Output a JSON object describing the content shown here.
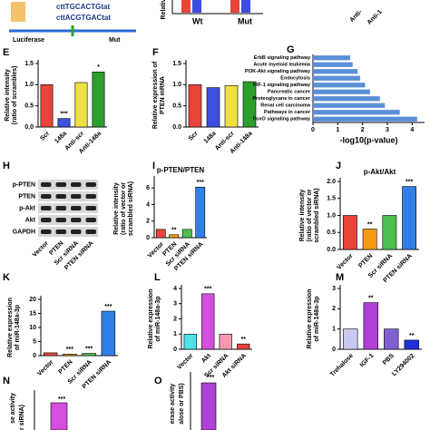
{
  "chart_data": [
    {
      "type": "bar",
      "panel": "E",
      "ylabel": [
        "Relative intensity",
        "(ratio of scrambles)"
      ],
      "categories": [
        "Scr",
        "148a",
        "Anti-scr",
        "Anti-148a"
      ],
      "values": [
        1.0,
        0.2,
        1.05,
        1.3
      ],
      "colors": [
        "#e8443a",
        "#3b4fe0",
        "#f0e040",
        "#2ca02c"
      ],
      "annotations": [
        null,
        "***",
        null,
        "*"
      ],
      "ylim": [
        0,
        1.5
      ],
      "yticks": [
        {
          "value": 0,
          "label": "0.0"
        },
        0.5,
        {
          "value": 1,
          "label": "1.0"
        },
        1.5
      ]
    },
    {
      "type": "bar",
      "panel": "F",
      "ylabel": [
        "Relative expression of",
        "PTEN mRNA"
      ],
      "categories": [
        "Scr",
        "148a",
        "Anti-scr",
        "Anti-148a"
      ],
      "values": [
        1.0,
        0.93,
        0.98,
        1.07
      ],
      "colors": [
        "#e8443a",
        "#3b4fe0",
        "#f0e040",
        "#2ca02c"
      ],
      "ylim": [
        0,
        1.5
      ],
      "yticks": [
        {
          "value": 0,
          "label": "0.0"
        },
        0.5,
        {
          "value": 1,
          "label": "1.0"
        },
        1.5
      ]
    },
    {
      "type": "barh",
      "panel": "G",
      "xlabel": "-log10(p-value)",
      "color": "#5b8fd6",
      "categories": [
        "ErbB signaling pathway",
        "Acute myeloid leukemia",
        "PI3K-Akt signaling pathway",
        "Endocytosis",
        "HIF-1 signaling pathway",
        "Pancreatic cancer",
        "Proteoglycans in cancer",
        "Renal cell carcinoma",
        "Pathways in cancer",
        "FoxO signaling pathway"
      ],
      "values": [
        1.5,
        1.6,
        1.8,
        1.9,
        2.1,
        2.3,
        2.7,
        2.9,
        3.5,
        4.2
      ],
      "xlim": [
        0,
        4.5
      ],
      "xticks": [
        0,
        1,
        2,
        3,
        4
      ]
    },
    {
      "type": "bar",
      "panel": "I",
      "title": "p-PTEN/PTEN",
      "ylabel": [
        "Relative intensity",
        "(ratio of vector or",
        "scrambled siRNA)"
      ],
      "categories": [
        "Vector",
        "PTEN",
        "Scr siRNA",
        "PTEN siRNA"
      ],
      "values": [
        1.0,
        0.35,
        1.0,
        6.1
      ],
      "colors": [
        "#e8443a",
        "#f39c12",
        "#4fc04f",
        "#2f7fe6"
      ],
      "annotations": [
        null,
        "**",
        null,
        "***"
      ],
      "ylim": [
        0,
        7
      ],
      "yticks": [
        0,
        2,
        4,
        6
      ]
    },
    {
      "type": "bar",
      "panel": "J",
      "title": "p-Akt/Akt",
      "ylabel": [
        "Relative intensity",
        "(ratio of vector or",
        "scrambled siRNA)"
      ],
      "categories": [
        "Vector",
        "PTEN",
        "Scr siRNA",
        "PTEN siRNA"
      ],
      "values": [
        1.0,
        0.6,
        1.0,
        1.85
      ],
      "colors": [
        "#e8443a",
        "#f39c12",
        "#4fc04f",
        "#2f7fe6"
      ],
      "annotations": [
        null,
        "**",
        null,
        "***"
      ],
      "ylim": [
        0,
        2
      ],
      "yticks": [
        {
          "value": 0,
          "label": "0.0"
        },
        0.5,
        {
          "value": 1,
          "label": "1.0"
        },
        1.5,
        {
          "value": 2,
          "label": "2.0"
        }
      ]
    },
    {
      "type": "bar",
      "panel": "K",
      "ylabel": [
        "Relative expression",
        "of miR-148a-3p"
      ],
      "categories": [
        "Vector",
        "PTEN",
        "Scr siRNA",
        "PTEN siRNA"
      ],
      "values": [
        1.0,
        0.55,
        0.8,
        15.8
      ],
      "colors": [
        "#e8443a",
        "#f39c12",
        "#4fc04f",
        "#2f7fe6"
      ],
      "annotations": [
        null,
        "***",
        "***",
        "***"
      ],
      "ylim": [
        0,
        20
      ],
      "yticks": [
        0,
        5,
        10,
        15,
        20
      ]
    },
    {
      "type": "bar",
      "panel": "L",
      "ylabel": [
        "Relative expression",
        "of miR-148a-3p"
      ],
      "categories": [
        "Vector",
        "Akt",
        "Scr siRNA",
        "Akt siRNA"
      ],
      "values": [
        1.0,
        3.65,
        1.0,
        0.35
      ],
      "colors": [
        "#4fe0e8",
        "#d44fe0",
        "#f59ab0",
        "#e8443a"
      ],
      "annotations": [
        null,
        "***",
        null,
        "**"
      ],
      "ylim": [
        0,
        4
      ],
      "yticks": [
        0,
        1,
        2,
        3,
        4
      ]
    },
    {
      "type": "bar",
      "panel": "M",
      "ylabel": [
        "Relative expression",
        "of miR-148a-3p"
      ],
      "categories": [
        "Trehalose",
        "IGF-1",
        "PBS",
        "LY294002"
      ],
      "values": [
        1.0,
        2.3,
        1.0,
        0.45
      ],
      "colors": [
        "#c8c8f0",
        "#b040d8",
        "#8060d0",
        "#2030d8"
      ],
      "annotations": [
        null,
        "**",
        null,
        "**"
      ],
      "ylim": [
        0,
        3
      ],
      "yticks": [
        0,
        1,
        2,
        3
      ]
    }
  ],
  "blot": {
    "panel": "H",
    "rows": [
      "p-PTEN",
      "PTEN",
      "p-Akt",
      "Akt",
      "GAPDH"
    ],
    "lanes": [
      "Vector",
      "PTEN",
      "Scr siRNA",
      "PTEN siRNA"
    ]
  },
  "fragments": [
    "cttTGCACTGtat",
    "cttACGTGACtat",
    "Luciferase",
    "Mut",
    "Relative",
    "Wt",
    "Mut",
    "Anti-",
    "Anti-1",
    "N",
    "se activity",
    "r siRNA)",
    "***",
    "O",
    "erase activity",
    "alose or PBS)",
    "***"
  ]
}
